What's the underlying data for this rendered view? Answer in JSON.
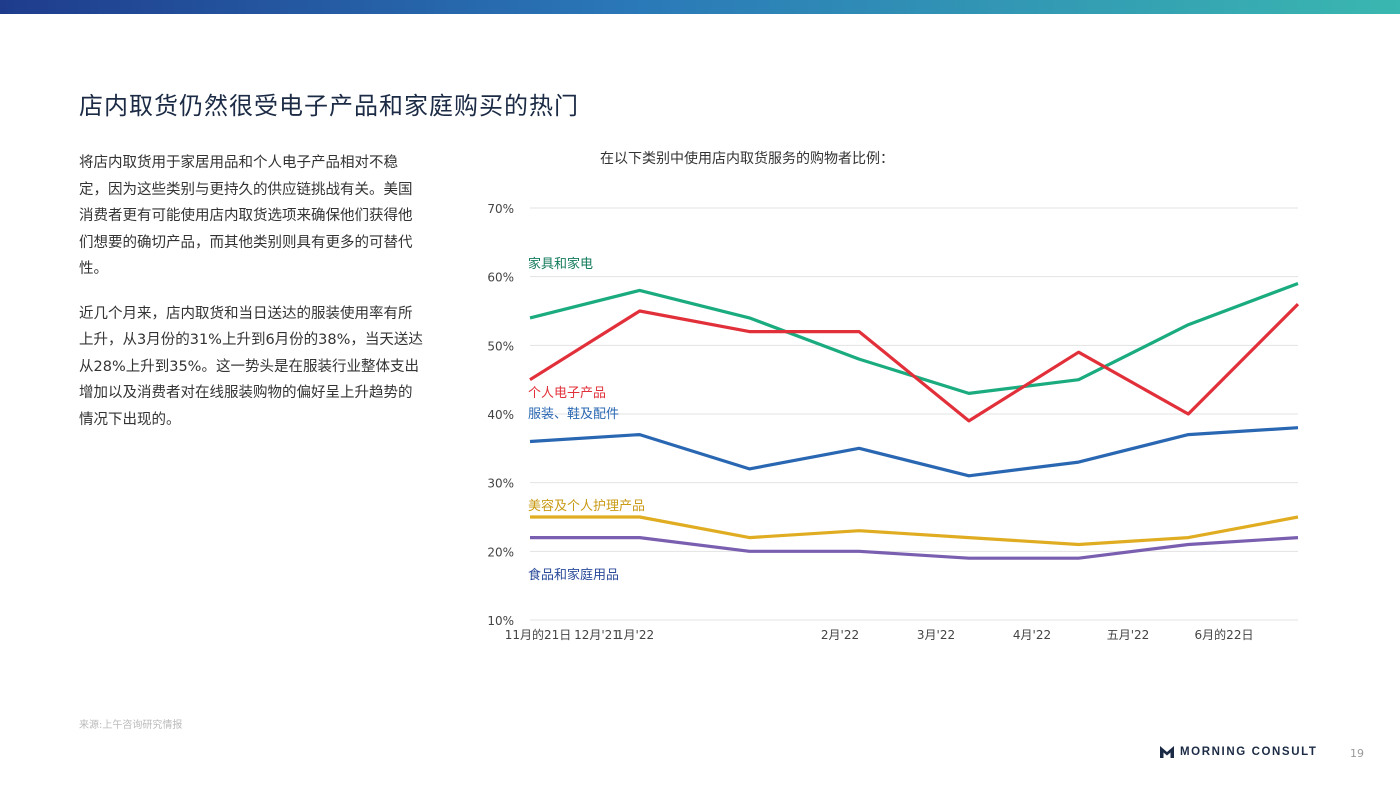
{
  "page": {
    "title": "店内取货仍然很受电子产品和家庭购买的热门",
    "paragraphs": [
      "将店内取货用于家居用品和个人电子产品相对不稳定，因为这些类别与更持久的供应链挑战有关。美国消费者更有可能使用店内取货选项来确保他们获得他们想要的确切产品，而其他类别则具有更多的可替代性。",
      "近几个月来，店内取货和当日送达的服装使用率有所上升，从3月份的31%上升到6月份的38%，当天送达从28%上升到35%。这一势头是在服装行业整体支出增加以及消费者对在线服装购物的偏好呈上升趋势的情况下出现的。"
    ],
    "source": "来源:上午咨询研究情报",
    "logo_text": "MORNING CONSULT",
    "page_number": "19"
  },
  "chart_data": {
    "type": "line",
    "title": "在以下类别中使用店内取货服务的购物者比例：",
    "x_labels": [
      "11月的21日",
      "12月'21",
      "1月'22",
      "2月'22",
      "3月'22",
      "4月'22",
      "五月'22",
      "6月的22日"
    ],
    "y_ticks": [
      "10%",
      "20%",
      "30%",
      "40%",
      "50%",
      "60%",
      "70%"
    ],
    "ylim": [
      10,
      70
    ],
    "grid": true,
    "series": [
      {
        "name": "家具和家电",
        "color": "#1aab7f",
        "values": [
          54,
          58,
          54,
          48,
          43,
          45,
          53,
          59
        ]
      },
      {
        "name": "个人电子产品",
        "color": "#e2303a",
        "values": [
          45,
          55,
          52,
          52,
          39,
          49,
          40,
          56
        ]
      },
      {
        "name": "服装、鞋及配件",
        "color": "#2a67b2",
        "values": [
          36,
          37,
          32,
          35,
          31,
          33,
          37,
          38
        ]
      },
      {
        "name": "美容及个人护理产品",
        "color": "#e0ad22",
        "values": [
          25,
          25,
          22,
          23,
          22,
          21,
          22,
          25
        ]
      },
      {
        "name": "食品和家庭用品",
        "color": "#7a5fb0",
        "values": [
          22,
          22,
          20,
          20,
          19,
          19,
          21,
          22
        ]
      }
    ]
  }
}
